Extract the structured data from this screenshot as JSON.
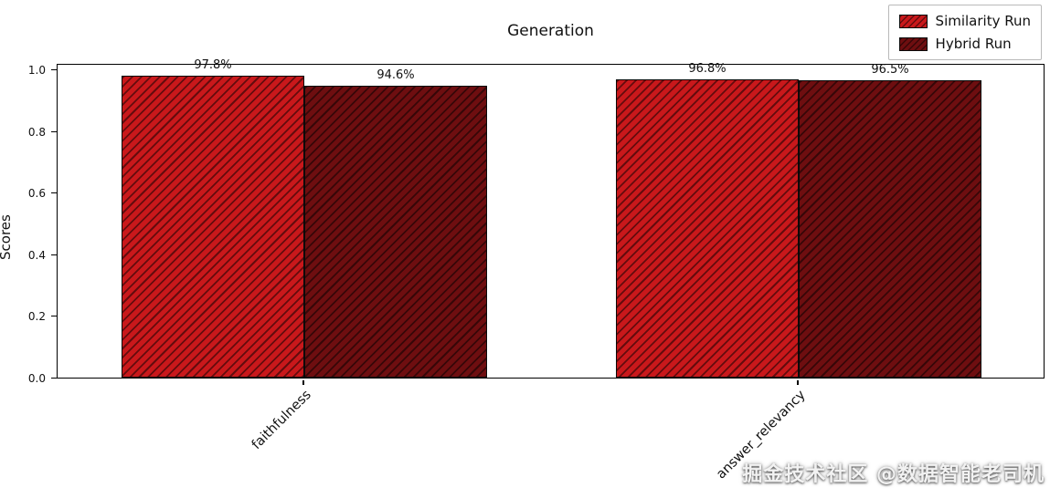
{
  "watermark": "掘金技术社区 @数据智能老司机",
  "chart_data": {
    "type": "bar",
    "title": "Generation",
    "xlabel": "",
    "ylabel": "Scores",
    "categories": [
      "faithfulness",
      "answer_relevancy"
    ],
    "series": [
      {
        "name": "Similarity Run",
        "color": "#c9181b",
        "values": [
          0.978,
          0.968
        ],
        "labels": [
          "97.8%",
          "96.8%"
        ]
      },
      {
        "name": "Hybrid Run",
        "color": "#6e0e10",
        "values": [
          0.946,
          0.965
        ],
        "labels": [
          "94.6%",
          "96.5%"
        ]
      }
    ],
    "ylim": [
      0.0,
      1.02
    ],
    "yticks": [
      "0.0",
      "0.2",
      "0.4",
      "0.6",
      "0.8",
      "1.0"
    ],
    "hatch": "//",
    "grid": false,
    "legend_position": "upper right"
  }
}
